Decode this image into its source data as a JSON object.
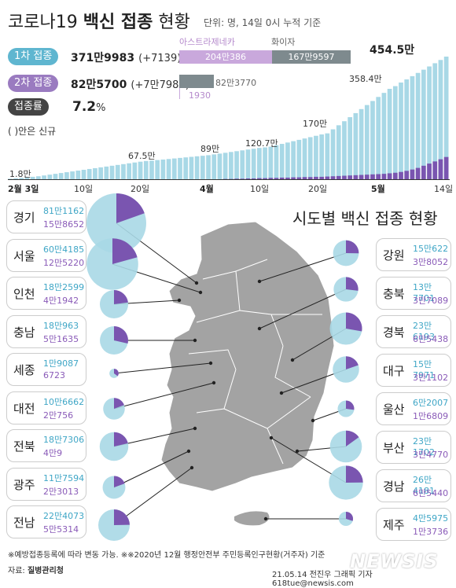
{
  "header": {
    "title_pre": "코로나19",
    "title_bold": "백신 접종",
    "title_post": "현황",
    "unit_note": "단위: 명, 14일 0시 누적 기준"
  },
  "summary": {
    "dose1_label": "1차 접종",
    "dose1_total": "371만9983",
    "dose1_new": "(+7139)",
    "dose2_label": "2차 접종",
    "dose2_total": "82만5700",
    "dose2_new": "(+7만7987)",
    "rate_label": "접종률",
    "rate_value": "7.2",
    "rate_unit": "%",
    "new_note": "( )안은 신규"
  },
  "vaccine_split": {
    "astra_label": "아스트라제네카",
    "pfizer_label": "화이자",
    "dose1_astra": "204만386",
    "dose1_pfizer": "167만9597",
    "dose2_pfizer": "82만3770",
    "dose2_astra": "1930",
    "colors": {
      "astra": "#c9a8dc",
      "pfizer": "#7e8a8e",
      "astra_text": "#b58acc"
    }
  },
  "colors": {
    "dose1": "#a8d8e6",
    "dose2": "#7a55b0",
    "pill1": "#5fb6d0",
    "pill2": "#9a7bc0"
  },
  "chart_data": [
    {
      "type": "bar",
      "title": "",
      "x_ticks": [
        "2월 3일",
        "10일",
        "20일",
        "4월",
        "10일",
        "20일",
        "5월",
        "14일"
      ],
      "annotations": [
        {
          "label": "1.8만",
          "value": 1.8
        },
        {
          "label": "67.5만",
          "value": 67.5
        },
        {
          "label": "89만",
          "value": 89
        },
        {
          "label": "120.7만",
          "value": 120.7
        },
        {
          "label": "170만",
          "value": 170
        },
        {
          "label": "358.4만",
          "value": 358.4
        },
        {
          "label": "454.5만",
          "value": 454.5
        }
      ],
      "series": [
        {
          "name": "1차 접종",
          "values": [
            1.8,
            3.5,
            5,
            7,
            9,
            11,
            14,
            17,
            20,
            23,
            26,
            29,
            32,
            35,
            38,
            41,
            44,
            47,
            50,
            53,
            56,
            59,
            62,
            65,
            67.5,
            69,
            71,
            73,
            75,
            77,
            79,
            81,
            83,
            85,
            87,
            89,
            92,
            95,
            98,
            101,
            104,
            107,
            110,
            113,
            116,
            118,
            120.7,
            126,
            131,
            136,
            141,
            146,
            151,
            156,
            161,
            166,
            170,
            185,
            200,
            215,
            230,
            245,
            260,
            275,
            290,
            305,
            320,
            335,
            345,
            358.4,
            370,
            382,
            394,
            406,
            418,
            430,
            442,
            454.5
          ]
        },
        {
          "name": "2차 접종",
          "values": [
            0,
            0,
            0,
            0,
            0,
            0,
            0,
            0,
            0,
            0,
            0,
            0,
            0,
            0,
            0,
            0,
            0,
            0,
            0,
            0,
            0,
            0,
            0,
            0,
            0,
            0,
            0,
            0,
            0,
            0,
            0,
            0,
            0,
            0,
            0,
            0,
            0,
            0,
            1,
            1,
            2,
            2,
            3,
            3,
            4,
            4,
            5,
            5,
            6,
            6,
            7,
            7,
            8,
            8,
            9,
            9,
            10,
            11,
            12,
            13,
            14,
            15,
            16,
            17,
            18,
            19,
            20,
            22,
            24,
            27,
            31,
            36,
            42,
            50,
            58,
            66,
            74,
            82.5
          ]
        }
      ]
    },
    {
      "type": "pie",
      "title": "시도별 백신 접종 현황",
      "regions": [
        {
          "name": "경기",
          "dose1": "81만1162",
          "dose2": "15만8652",
          "d1": 811162,
          "d2": 158652
        },
        {
          "name": "서울",
          "dose1": "60만4185",
          "dose2": "12만5220",
          "d1": 604185,
          "d2": 125220
        },
        {
          "name": "인천",
          "dose1": "18만2599",
          "dose2": "4만1942",
          "d1": 182599,
          "d2": 41942
        },
        {
          "name": "충남",
          "dose1": "18만963",
          "dose2": "5만1635",
          "d1": 180963,
          "d2": 51635
        },
        {
          "name": "세종",
          "dose1": "1만9087",
          "dose2": "6723",
          "d1": 19087,
          "d2": 6723
        },
        {
          "name": "대전",
          "dose1": "10만6662",
          "dose2": "2만756",
          "d1": 106662,
          "d2": 20756
        },
        {
          "name": "전북",
          "dose1": "18만7306",
          "dose2": "4만9",
          "d1": 187306,
          "d2": 40009
        },
        {
          "name": "광주",
          "dose1": "11만7594",
          "dose2": "2만3013",
          "d1": 117594,
          "d2": 23013
        },
        {
          "name": "전남",
          "dose1": "22만4073",
          "dose2": "5만5314",
          "d1": 224073,
          "d2": 55314
        },
        {
          "name": "강원",
          "dose1": "15만622",
          "dose2": "3만8052",
          "d1": 150622,
          "d2": 38052
        },
        {
          "name": "충북",
          "dose1": "13만7701",
          "dose2": "3만7089",
          "d1": 137701,
          "d2": 37089
        },
        {
          "name": "경북",
          "dose1": "23만6193",
          "dose2": "6만5438",
          "d1": 236193,
          "d2": 65438
        },
        {
          "name": "대구",
          "dose1": "15만7971",
          "dose2": "3만1102",
          "d1": 157971,
          "d2": 31102
        },
        {
          "name": "울산",
          "dose1": "6만2007",
          "dose2": "1만6809",
          "d1": 62007,
          "d2": 16809
        },
        {
          "name": "부산",
          "dose1": "23만1702",
          "dose2": "3만4770",
          "d1": 231702,
          "d2": 34770
        },
        {
          "name": "경남",
          "dose1": "26만4181",
          "dose2": "6만5440",
          "d1": 264181,
          "d2": 65440
        },
        {
          "name": "제주",
          "dose1": "4만5975",
          "dose2": "1만3736",
          "d1": 45975,
          "d2": 13736
        }
      ]
    }
  ],
  "footer": {
    "note": "※예방접종등록에 따라 변동 가능. ※※2020년 12월 행정안전부 주민등록인구현황(거주자) 기준",
    "source_label": "자료:",
    "source": "질병관리청",
    "credit": "21.05.14 전진우 그래픽 기자 618tue@newsis.com",
    "watermark": "NEWSIS"
  }
}
